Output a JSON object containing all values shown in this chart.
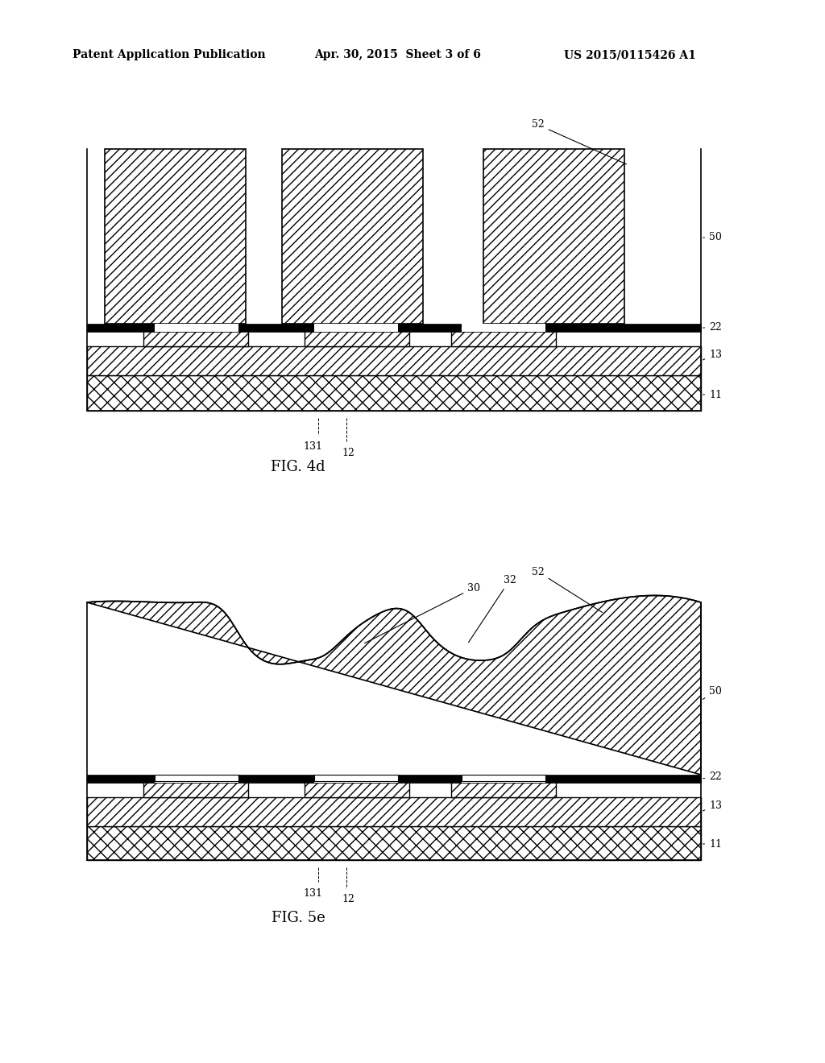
{
  "bg_color": "#ffffff",
  "header_left": "Patent Application Publication",
  "header_mid": "Apr. 30, 2015  Sheet 3 of 6",
  "header_right": "US 2015/0115426 A1",
  "fig4d_label": "FIG. 4d",
  "fig5e_label": "FIG. 5e",
  "hatch_pattern": "///",
  "hatch_pattern2": "xxx"
}
